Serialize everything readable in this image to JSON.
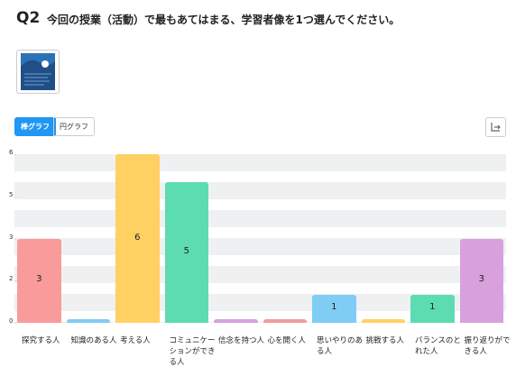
{
  "header": {
    "number": "Q2",
    "question": "今回の授業（活動）で最もあてはまる、学習者像を1つ選んでください。"
  },
  "toggle": [
    "棒グラフ",
    "円グラフ"
  ],
  "chart_data": {
    "type": "bar",
    "categories": [
      "探究する人",
      "知識のある人",
      "考える人",
      "コミュニケーションができる人",
      "信念を持つ人",
      "心を開く人",
      "思いやりのある人",
      "挑戦する人",
      "バランスのとれた人",
      "振り返りができる人"
    ],
    "values": [
      3,
      0,
      6,
      5,
      0,
      0,
      1,
      0,
      1,
      3
    ],
    "colors": [
      "#f99b9b",
      "#7fcdf4",
      "#ffd062",
      "#5ddbb1",
      "#d5a0e0",
      "#f39b9b",
      "#7fcdf4",
      "#ffd062",
      "#5ddbb1",
      "#d8a0dc"
    ],
    "ylim": [
      0,
      6
    ],
    "yticks": [
      0,
      {
        "value": 1.5,
        "label": "2"
      },
      3,
      {
        "value": 4.5,
        "label": "5"
      },
      6
    ]
  }
}
